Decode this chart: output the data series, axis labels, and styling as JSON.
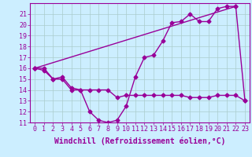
{
  "background_color": "#cceeff",
  "grid_color": "#aacccc",
  "line_color": "#990099",
  "line_width": 1.0,
  "marker": "D",
  "marker_size": 2.5,
  "xlim": [
    -0.5,
    23.5
  ],
  "ylim": [
    11,
    22
  ],
  "xticks": [
    0,
    1,
    2,
    3,
    4,
    5,
    6,
    7,
    8,
    9,
    10,
    11,
    12,
    13,
    14,
    15,
    16,
    17,
    18,
    19,
    20,
    21,
    22,
    23
  ],
  "yticks": [
    11,
    12,
    13,
    14,
    15,
    16,
    17,
    18,
    19,
    20,
    21
  ],
  "xlabel": "Windchill (Refroidissement éolien,°C)",
  "xlabel_fontsize": 7,
  "tick_fontsize": 6,
  "line1_x": [
    0,
    1,
    2,
    3,
    4,
    5,
    6,
    7,
    8,
    9,
    10,
    11,
    12,
    13,
    14,
    15,
    16,
    17,
    18,
    19,
    20,
    21,
    22,
    23
  ],
  "line1_y": [
    16,
    15.8,
    15,
    15,
    14,
    14,
    14,
    14,
    14,
    13.3,
    13.5,
    13.5,
    13.5,
    13.5,
    13.5,
    13.5,
    13.5,
    13.3,
    13.3,
    13.3,
    13.5,
    13.5,
    13.5,
    13
  ],
  "line2_x": [
    0,
    1,
    2,
    3,
    4,
    5,
    6,
    7,
    8,
    9,
    10,
    11,
    12,
    13,
    14,
    15,
    16,
    17,
    18,
    19,
    20,
    21,
    22,
    23
  ],
  "line2_y": [
    16,
    16,
    15,
    15.2,
    14.2,
    14,
    12,
    11.2,
    11,
    11.2,
    12.5,
    15.2,
    17.0,
    17.2,
    18.5,
    20.2,
    20.3,
    21.0,
    20.3,
    20.3,
    21.5,
    21.7,
    21.7,
    13
  ],
  "line3_x": [
    0,
    22
  ],
  "line3_y": [
    16,
    21.7
  ]
}
